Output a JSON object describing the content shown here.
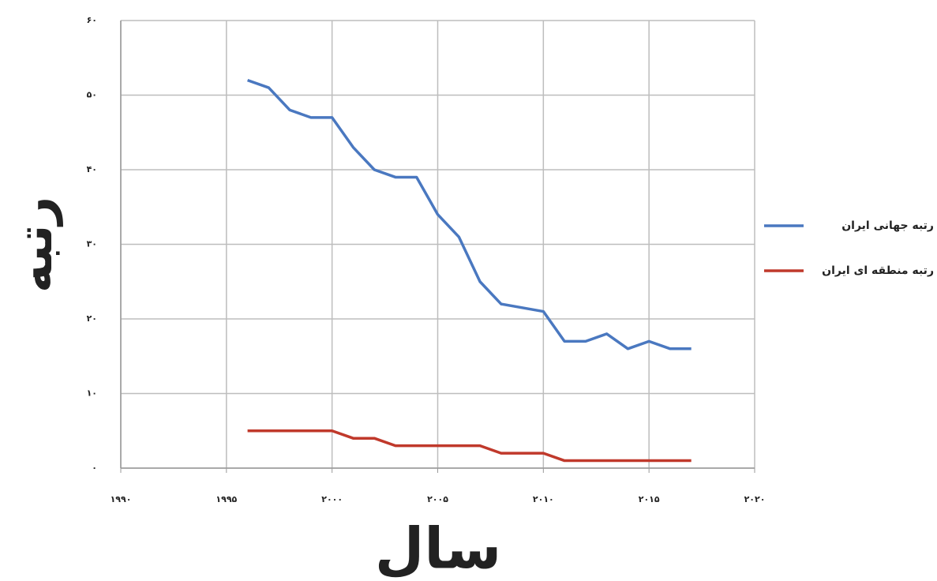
{
  "chart_data": {
    "type": "line",
    "x_label": "سال",
    "y_label": "رتبه",
    "x": [
      1996,
      1997,
      1998,
      1999,
      2000,
      2001,
      2002,
      2003,
      2004,
      2005,
      2006,
      2007,
      2008,
      2009,
      2010,
      2011,
      2012,
      2013,
      2014,
      2015,
      2016,
      2017
    ],
    "series": [
      {
        "name": "رتبه جهانی ایران",
        "color": "#4a78c0",
        "values": [
          52,
          51,
          48,
          47,
          47,
          43,
          40,
          39,
          39,
          34,
          31,
          25,
          22,
          21.5,
          21,
          17,
          17,
          18,
          16,
          17,
          16,
          16
        ]
      },
      {
        "name": "رتبه منطقه ای ایران",
        "color": "#c0392b",
        "values": [
          5,
          5,
          5,
          5,
          5,
          4,
          4,
          3,
          3,
          3,
          3,
          3,
          2,
          2,
          2,
          1,
          1,
          1,
          1,
          1,
          1,
          1
        ]
      }
    ],
    "xlim": [
      1990,
      2020
    ],
    "xticks": [
      {
        "value": 1990,
        "label": "۱۹۹۰"
      },
      {
        "value": 1995,
        "label": "۱۹۹۵"
      },
      {
        "value": 2000,
        "label": "۲۰۰۰"
      },
      {
        "value": 2005,
        "label": "۲۰۰۵"
      },
      {
        "value": 2010,
        "label": "۲۰۱۰"
      },
      {
        "value": 2015,
        "label": "۲۰۱۵"
      },
      {
        "value": 2020,
        "label": "۲۰۲۰"
      }
    ],
    "ylim": [
      0,
      60
    ],
    "yticks": [
      {
        "value": 0,
        "label": "۰"
      },
      {
        "value": 10,
        "label": "۱۰"
      },
      {
        "value": 20,
        "label": "۲۰"
      },
      {
        "value": 30,
        "label": "۳۰"
      },
      {
        "value": 40,
        "label": "۴۰"
      },
      {
        "value": 50,
        "label": "۵۰"
      },
      {
        "value": 60,
        "label": "۶۰"
      }
    ],
    "grid": true,
    "legend": "right"
  }
}
